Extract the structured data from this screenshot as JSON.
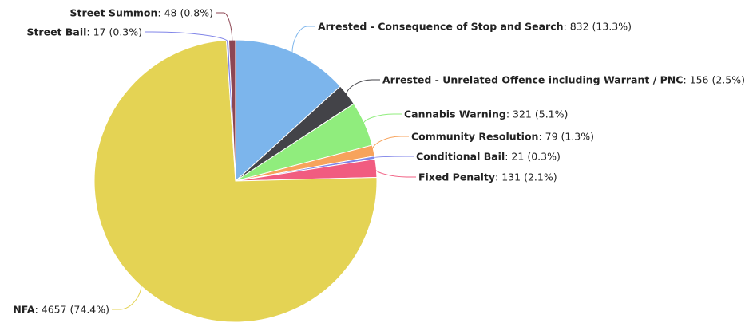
{
  "chart_data": {
    "type": "pie",
    "title": "",
    "slices": [
      {
        "name": "Arrested - Consequence of Stop and Search",
        "value": 832,
        "percent": "13.3%",
        "color": "#7cb5ec"
      },
      {
        "name": "Arrested - Unrelated Offence including Warrant / PNC",
        "value": 156,
        "percent": "2.5%",
        "color": "#434348"
      },
      {
        "name": "Cannabis Warning",
        "value": 321,
        "percent": "5.1%",
        "color": "#90ed7d"
      },
      {
        "name": "Community Resolution",
        "value": 79,
        "percent": "1.3%",
        "color": "#f7a35c"
      },
      {
        "name": "Conditional Bail",
        "value": 21,
        "percent": "0.3%",
        "color": "#8085e9"
      },
      {
        "name": "Fixed Penalty",
        "value": 131,
        "percent": "2.1%",
        "color": "#f15c80"
      },
      {
        "name": "NFA",
        "value": 4657,
        "percent": "74.4%",
        "color": "#e4d354"
      },
      {
        "name": "Street Bail",
        "value": 17,
        "percent": "0.3%",
        "color": "#8085e8"
      },
      {
        "name": "Street Summon",
        "value": 48,
        "percent": "0.8%",
        "color": "#8d4653"
      }
    ]
  }
}
